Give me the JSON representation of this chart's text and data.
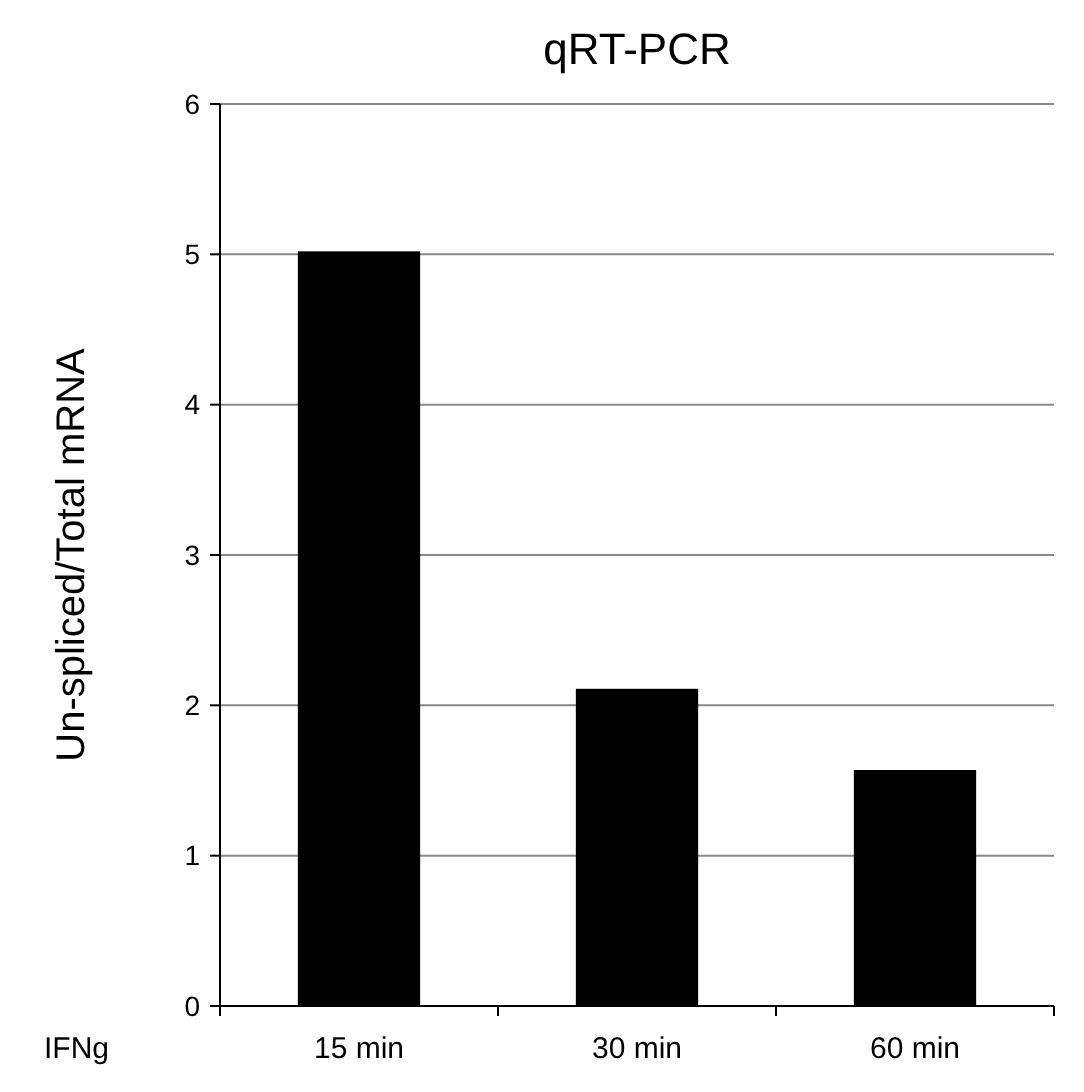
{
  "chart_data": {
    "type": "bar",
    "title": "qRT-PCR",
    "ylabel": "Un-spliced/Total mRNA",
    "xlabel": "IFNg",
    "categories": [
      "15 min",
      "30 min",
      "60 min"
    ],
    "values": [
      5.02,
      2.11,
      1.57
    ],
    "color": "#000000",
    "ylim": [
      0,
      6
    ],
    "yticks": [
      0,
      1,
      2,
      3,
      4,
      5,
      6
    ],
    "grid": "y"
  }
}
